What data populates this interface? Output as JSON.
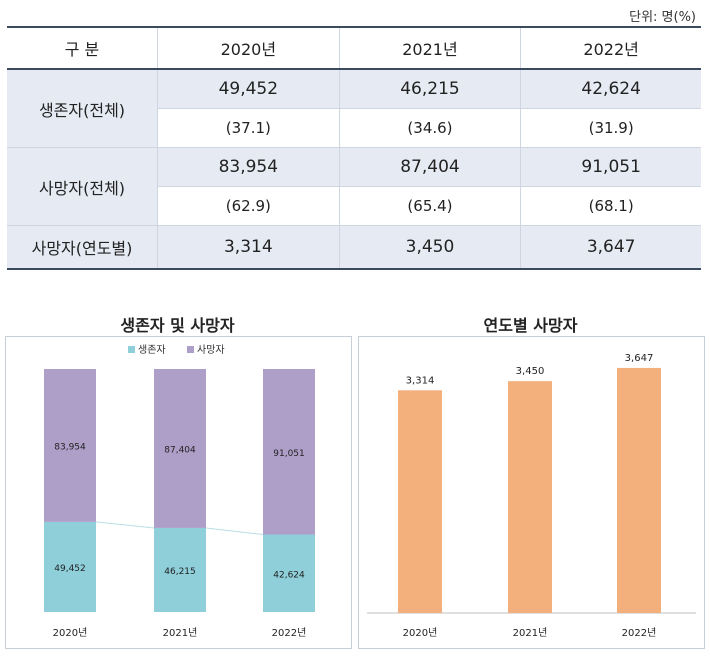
{
  "unit_label": "단위: 명(%)",
  "table": {
    "header": [
      "구 분",
      "2020년",
      "2021년",
      "2022년"
    ],
    "rows": [
      {
        "label": "생존자(전체)",
        "counts": [
          "49,452",
          "46,215",
          "42,624"
        ],
        "percents": [
          "(37.1)",
          "(34.6)",
          "(31.9)"
        ]
      },
      {
        "label": "사망자(전체)",
        "counts": [
          "83,954",
          "87,404",
          "91,051"
        ],
        "percents": [
          "(62.9)",
          "(65.4)",
          "(68.1)"
        ]
      },
      {
        "label": "사망자(연도별)",
        "counts": [
          "3,314",
          "3,450",
          "3,647"
        ]
      }
    ]
  },
  "chart_data": [
    {
      "type": "bar",
      "stacked": true,
      "title": "생존자 및 사망자",
      "categories": [
        "2020년",
        "2021년",
        "2022년"
      ],
      "series": [
        {
          "name": "생존자",
          "values": [
            49452,
            46215,
            42624
          ],
          "labels": [
            "49,452",
            "46,215",
            "42,624"
          ],
          "color": "#8ecfda"
        },
        {
          "name": "사망자",
          "values": [
            83954,
            87404,
            91051
          ],
          "labels": [
            "83,954",
            "87,404",
            "91,051"
          ],
          "color": "#ae9fc9"
        }
      ],
      "legend_position": "top",
      "percent_stacked": true,
      "series_lines": true
    },
    {
      "type": "bar",
      "title": "연도별 사망자",
      "categories": [
        "2020년",
        "2021년",
        "2022년"
      ],
      "values": [
        3314,
        3450,
        3647
      ],
      "labels": [
        "3,314",
        "3,450",
        "3,647"
      ],
      "color": "#f4b07c"
    }
  ]
}
